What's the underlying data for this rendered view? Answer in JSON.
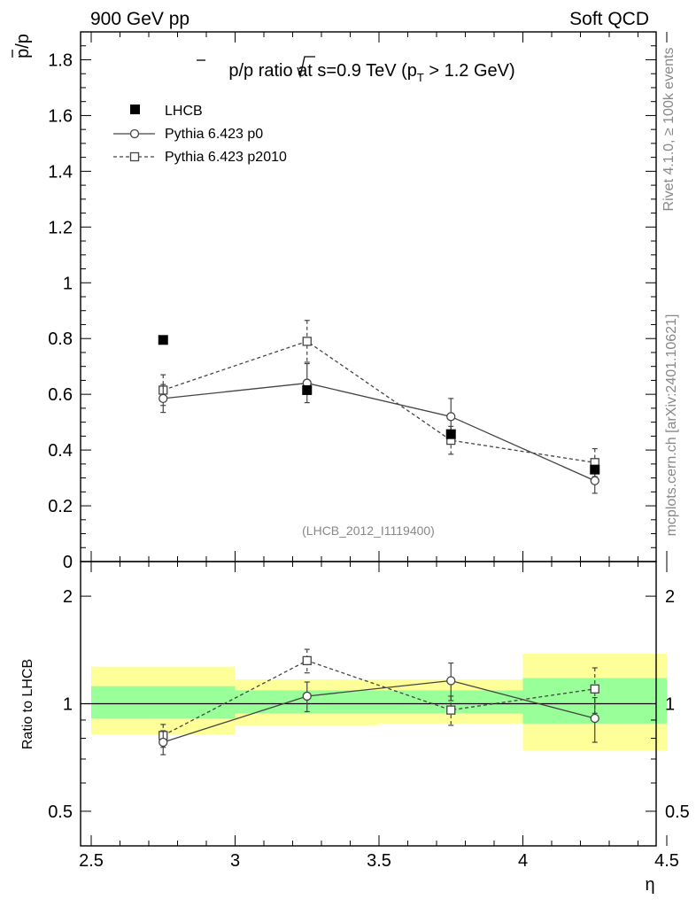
{
  "header": {
    "left": "900 GeV pp",
    "right": "Soft QCD"
  },
  "side_labels": {
    "rivet": "Rivet 4.1.0, ≥ 100k events",
    "site": "mcplots.cern.ch [arXiv:2401.10621]"
  },
  "colors": {
    "mc": "#444444",
    "data": "#000000",
    "band_outer": "#ffff99",
    "band_inner": "#99ff99",
    "watermark": "#888888"
  },
  "chart_data": [
    {
      "id": "main",
      "type": "scatter",
      "title_parts": {
        "pre": "p/p ratio at ",
        "sqrt": "s",
        "mid": "=0.9 TeV (p",
        "sub": "T",
        "post": " > 1.2 GeV)"
      },
      "ylabel": "p/p",
      "xlabel": "η",
      "xlim": [
        2.5,
        4.5
      ],
      "ylim": [
        0,
        1.9
      ],
      "yticks": [
        0,
        0.2,
        0.4,
        0.6,
        0.8,
        1,
        1.2,
        1.4,
        1.6,
        1.8
      ],
      "ytick_labels": [
        "0",
        "0.2",
        "0.4",
        "0.6",
        "0.8",
        "1",
        "1.2",
        "1.4",
        "1.6",
        "1.8"
      ],
      "watermark": "(LHCB_2012_I1119400)",
      "legend": [
        {
          "label": "LHCB",
          "marker": "filled-square"
        },
        {
          "label": "Pythia 6.423 p0",
          "marker": "open-circle",
          "line": "solid"
        },
        {
          "label": "Pythia 6.423 p2010",
          "marker": "open-square",
          "line": "dashed"
        }
      ],
      "series": [
        {
          "name": "LHCB",
          "x": [
            2.75,
            3.25,
            3.75,
            4.25
          ],
          "y": [
            0.795,
            0.615,
            0.457,
            0.33
          ],
          "yerr": [
            0.0,
            0.0,
            0.0,
            0.0
          ]
        },
        {
          "name": "Pythia 6.423 p0",
          "x": [
            2.75,
            3.25,
            3.75,
            4.25
          ],
          "y": [
            0.585,
            0.64,
            0.52,
            0.29
          ],
          "yerr": [
            0.05,
            0.07,
            0.065,
            0.045
          ]
        },
        {
          "name": "Pythia 6.423 p2010",
          "x": [
            2.75,
            3.25,
            3.75,
            4.25
          ],
          "y": [
            0.615,
            0.79,
            0.435,
            0.355
          ],
          "yerr": [
            0.055,
            0.075,
            0.05,
            0.05
          ]
        }
      ]
    },
    {
      "id": "ratio",
      "type": "scatter",
      "ylabel": "Ratio to LHCB",
      "xlabel": "η",
      "xlim": [
        2.5,
        4.5
      ],
      "yscale": "log",
      "ylim": [
        0.4,
        2.5
      ],
      "yticks": [
        0.5,
        1,
        2
      ],
      "ytick_labels": [
        "0.5",
        "1",
        "2"
      ],
      "xticks": [
        2.5,
        3,
        3.5,
        4,
        4.5
      ],
      "xtick_labels": [
        "2.5",
        "3",
        "3.5",
        "4",
        "4.5"
      ],
      "bands": [
        {
          "x": [
            2.5,
            3.0
          ],
          "outer": [
            0.82,
            1.27
          ],
          "inner": [
            0.91,
            1.12
          ]
        },
        {
          "x": [
            3.0,
            3.5
          ],
          "outer": [
            0.87,
            1.17
          ],
          "inner": [
            0.94,
            1.09
          ]
        },
        {
          "x": [
            3.5,
            4.0
          ],
          "outer": [
            0.88,
            1.17
          ],
          "inner": [
            0.94,
            1.09
          ]
        },
        {
          "x": [
            4.0,
            4.5
          ],
          "outer": [
            0.74,
            1.38
          ],
          "inner": [
            0.88,
            1.18
          ]
        }
      ],
      "series": [
        {
          "name": "Pythia 6.423 p0",
          "x": [
            2.75,
            3.25,
            3.75,
            4.25
          ],
          "y": [
            0.78,
            1.05,
            1.16,
            0.91
          ],
          "yerr": [
            0.06,
            0.1,
            0.14,
            0.13
          ]
        },
        {
          "name": "Pythia 6.423 p2010",
          "x": [
            2.75,
            3.25,
            3.75,
            4.25
          ],
          "y": [
            0.815,
            1.32,
            0.96,
            1.1
          ],
          "yerr": [
            0.06,
            0.1,
            0.09,
            0.16
          ]
        }
      ]
    }
  ]
}
